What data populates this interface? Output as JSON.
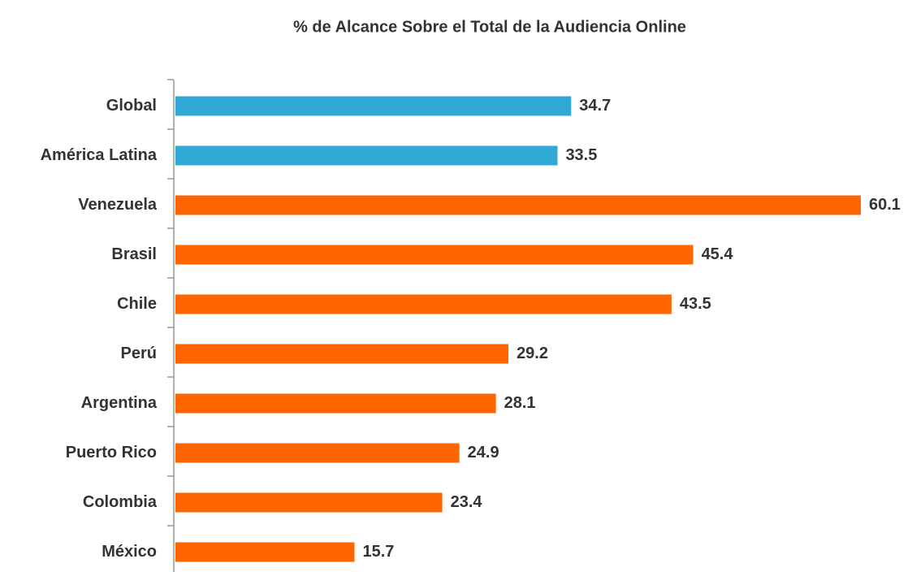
{
  "chart_data": {
    "type": "bar",
    "orientation": "horizontal",
    "title": "% de Alcance Sobre el Total de la Audiencia Online",
    "categories": [
      "Global",
      "América Latina",
      "Venezuela",
      "Brasil",
      "Chile",
      "Perú",
      "Argentina",
      "Puerto Rico",
      "Colombia",
      "México"
    ],
    "values": [
      34.7,
      33.5,
      60.1,
      45.4,
      43.5,
      29.2,
      28.1,
      24.9,
      23.4,
      15.7
    ],
    "colors": [
      "#31a9d6",
      "#31a9d6",
      "#ff6600",
      "#ff6600",
      "#ff6600",
      "#ff6600",
      "#ff6600",
      "#ff6600",
      "#ff6600",
      "#ff6600"
    ]
  }
}
